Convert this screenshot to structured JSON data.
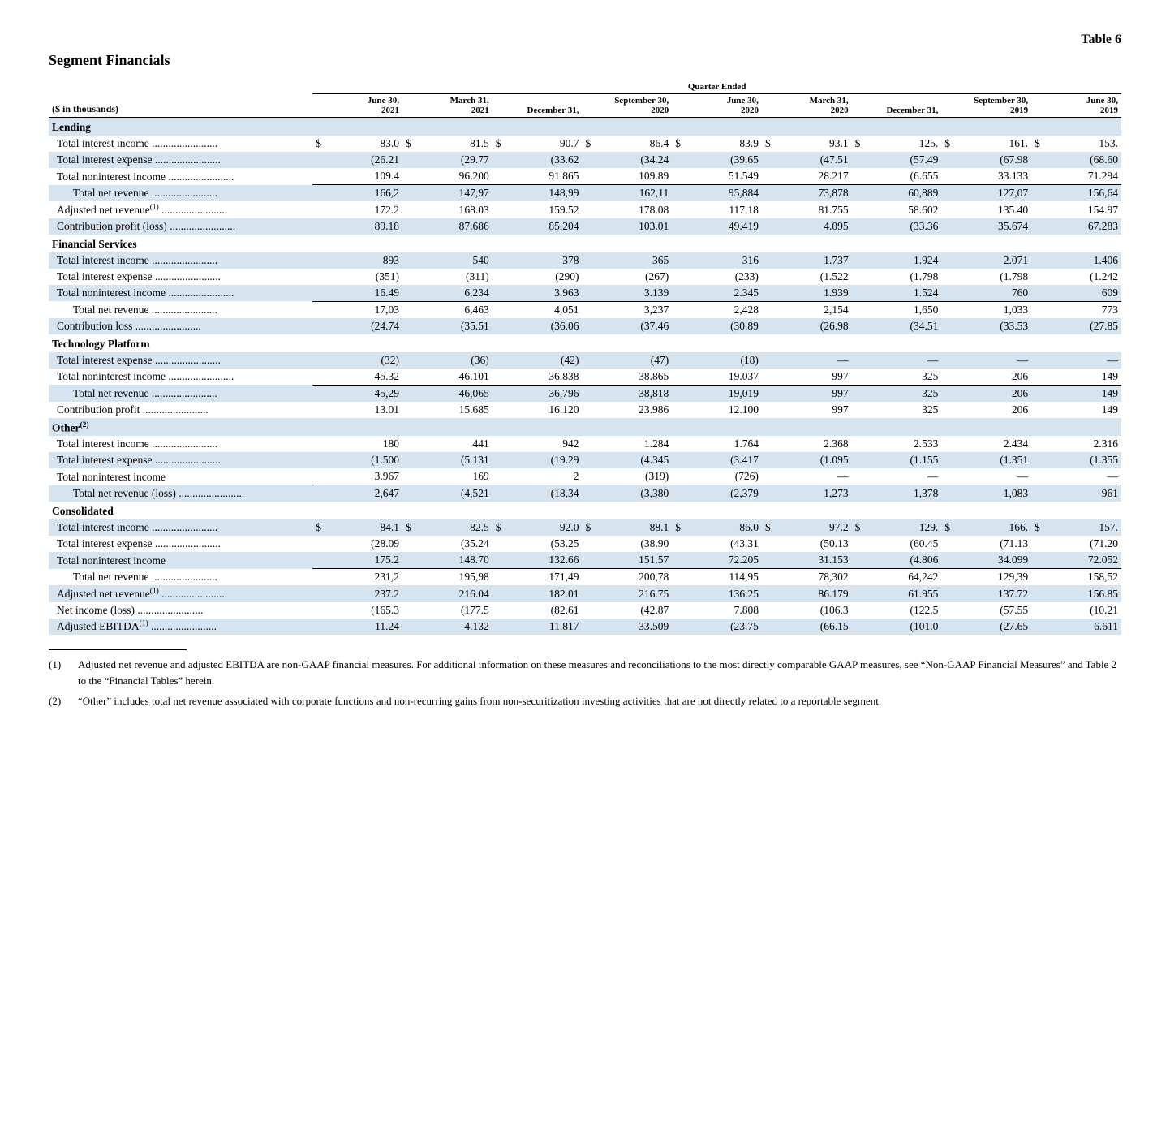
{
  "table_number": "Table 6",
  "title": "Segment Financials",
  "super_header": "Quarter Ended",
  "label_header": "($ in thousands)",
  "columns": [
    "June 30, 2021",
    "March 31, 2021",
    "December 31,",
    "September 30, 2020",
    "June 30, 2020",
    "March 31, 2020",
    "December 31,",
    "September 30, 2019",
    "June 30, 2019"
  ],
  "sections": [
    {
      "heading": "Lending",
      "heading_shade": true,
      "rows": [
        {
          "label": "Total interest income",
          "indent": 1,
          "dots": true,
          "shade": false,
          "currency": true,
          "cells": [
            "83.0",
            "81.5",
            "90.7",
            "86.4",
            "83.9",
            "93.1",
            "125.",
            "161.",
            "153."
          ]
        },
        {
          "label": "Total interest expense",
          "indent": 1,
          "dots": true,
          "shade": true,
          "cells": [
            "(26.21",
            "(29.77",
            "(33.62",
            "(34.24",
            "(39.65",
            "(47.51",
            "(57.49",
            "(67.98",
            "(68.60"
          ]
        },
        {
          "label": "Total noninterest income",
          "indent": 1,
          "dots": true,
          "shade": false,
          "underline": true,
          "cells": [
            "109.4",
            "96.200",
            "91.865",
            "109.89",
            "51.549",
            "28.217",
            "(6.655",
            "33.133",
            "71.294"
          ]
        },
        {
          "label": "Total net revenue",
          "indent": 2,
          "dots": true,
          "shade": true,
          "cells": [
            "166,2",
            "147,97",
            "148,99",
            "162,11",
            "95,884",
            "73,878",
            "60,889",
            "127,07",
            "156,64"
          ]
        },
        {
          "label": "Adjusted net revenue<sup>(1)</sup>",
          "indent": 1,
          "dots": true,
          "shade": false,
          "cells": [
            "172.2",
            "168.03",
            "159.52",
            "178.08",
            "117.18",
            "81.755",
            "58.602",
            "135.40",
            "154.97"
          ]
        },
        {
          "label": "Contribution profit (loss)",
          "indent": 1,
          "dots": true,
          "shade": true,
          "cells": [
            "89.18",
            "87.686",
            "85.204",
            "103.01",
            "49.419",
            "4.095",
            "(33.36",
            "35.674",
            "67.283"
          ]
        }
      ]
    },
    {
      "heading": "Financial Services",
      "heading_shade": false,
      "rows": [
        {
          "label": "Total interest income",
          "indent": 1,
          "dots": true,
          "shade": true,
          "cells": [
            "893",
            "540",
            "378",
            "365",
            "316",
            "1.737",
            "1.924",
            "2.071",
            "1.406"
          ]
        },
        {
          "label": "Total interest expense",
          "indent": 1,
          "dots": true,
          "shade": false,
          "cells": [
            "(351)",
            "(311)",
            "(290)",
            "(267)",
            "(233)",
            "(1.522",
            "(1.798",
            "(1.798",
            "(1.242"
          ]
        },
        {
          "label": "Total noninterest income",
          "indent": 1,
          "dots": true,
          "shade": true,
          "underline": true,
          "cells": [
            "16.49",
            "6.234",
            "3.963",
            "3.139",
            "2.345",
            "1.939",
            "1.524",
            "760",
            "609"
          ]
        },
        {
          "label": "Total net revenue",
          "indent": 2,
          "dots": true,
          "shade": false,
          "cells": [
            "17,03",
            "6,463",
            "4,051",
            "3,237",
            "2,428",
            "2,154",
            "1,650",
            "1,033",
            "773"
          ]
        },
        {
          "label": "Contribution loss",
          "indent": 1,
          "dots": true,
          "shade": true,
          "cells": [
            "(24.74",
            "(35.51",
            "(36.06",
            "(37.46",
            "(30.89",
            "(26.98",
            "(34.51",
            "(33.53",
            "(27.85"
          ]
        }
      ]
    },
    {
      "heading": "Technology Platform",
      "heading_shade": false,
      "rows": [
        {
          "label": "Total interest expense",
          "indent": 1,
          "dots": true,
          "shade": true,
          "cells": [
            "(32)",
            "(36)",
            "(42)",
            "(47)",
            "(18)",
            "—",
            "—",
            "—",
            "—"
          ]
        },
        {
          "label": "Total noninterest income",
          "indent": 1,
          "dots": true,
          "shade": false,
          "underline": true,
          "cells": [
            "45.32",
            "46.101",
            "36.838",
            "38.865",
            "19.037",
            "997",
            "325",
            "206",
            "149"
          ]
        },
        {
          "label": "Total net revenue",
          "indent": 2,
          "dots": true,
          "shade": true,
          "cells": [
            "45,29",
            "46,065",
            "36,796",
            "38,818",
            "19,019",
            "997",
            "325",
            "206",
            "149"
          ]
        },
        {
          "label": "Contribution profit",
          "indent": 1,
          "dots": true,
          "shade": false,
          "cells": [
            "13.01",
            "15.685",
            "16.120",
            "23.986",
            "12.100",
            "997",
            "325",
            "206",
            "149"
          ]
        }
      ]
    },
    {
      "heading": "Other<sup>(2)</sup>",
      "heading_shade": true,
      "rows": [
        {
          "label": "Total interest income",
          "indent": 1,
          "dots": true,
          "shade": false,
          "cells": [
            "180",
            "441",
            "942",
            "1.284",
            "1.764",
            "2.368",
            "2.533",
            "2.434",
            "2.316"
          ]
        },
        {
          "label": "Total interest expense",
          "indent": 1,
          "dots": true,
          "shade": true,
          "cells": [
            "(1.500",
            "(5.131",
            "(19.29",
            "(4.345",
            "(3.417",
            "(1.095",
            "(1.155",
            "(1.351",
            "(1.355"
          ]
        },
        {
          "label": "Total noninterest income",
          "indent": 1,
          "dots": false,
          "shade": false,
          "underline": true,
          "cells": [
            "3.967",
            "169",
            "2",
            "(319)",
            "(726)",
            "—",
            "—",
            "—",
            "—"
          ]
        },
        {
          "label": "Total net revenue (loss)",
          "indent": 2,
          "dots": true,
          "shade": true,
          "cells": [
            "2,647",
            "(4,521",
            "(18,34",
            "(3,380",
            "(2,379",
            "1,273",
            "1,378",
            "1,083",
            "961"
          ]
        }
      ]
    },
    {
      "heading": "Consolidated",
      "heading_shade": false,
      "rows": [
        {
          "label": "Total interest income",
          "indent": 1,
          "dots": true,
          "shade": true,
          "currency": true,
          "cells": [
            "84.1",
            "82.5",
            "92.0",
            "88.1",
            "86.0",
            "97.2",
            "129.",
            "166.",
            "157."
          ]
        },
        {
          "label": "Total interest expense",
          "indent": 1,
          "dots": true,
          "shade": false,
          "cells": [
            "(28.09",
            "(35.24",
            "(53.25",
            "(38.90",
            "(43.31",
            "(50.13",
            "(60.45",
            "(71.13",
            "(71.20"
          ]
        },
        {
          "label": "Total noninterest income",
          "indent": 1,
          "dots": false,
          "shade": true,
          "underline": true,
          "cells": [
            "175.2",
            "148.70",
            "132.66",
            "151.57",
            "72.205",
            "31.153",
            "(4.806",
            "34.099",
            "72.052"
          ]
        },
        {
          "label": "Total net revenue",
          "indent": 2,
          "dots": true,
          "shade": false,
          "cells": [
            "231,2",
            "195,98",
            "171,49",
            "200,78",
            "114,95",
            "78,302",
            "64,242",
            "129,39",
            "158,52"
          ]
        },
        {
          "label": "Adjusted net revenue<sup>(1)</sup>",
          "indent": 1,
          "dots": true,
          "shade": true,
          "cells": [
            "237.2",
            "216.04",
            "182.01",
            "216.75",
            "136.25",
            "86.179",
            "61.955",
            "137.72",
            "156.85"
          ]
        },
        {
          "label": "Net income (loss)",
          "indent": 1,
          "dots": true,
          "shade": false,
          "cells": [
            "(165.3",
            "(177.5",
            "(82.61",
            "(42.87",
            "7.808",
            "(106.3",
            "(122.5",
            "(57.55",
            "(10.21"
          ]
        },
        {
          "label": "Adjusted EBITDA<sup>(1)</sup>",
          "indent": 1,
          "dots": true,
          "shade": true,
          "cells": [
            "11.24",
            "4.132",
            "11.817",
            "33.509",
            "(23.75",
            "(66.15",
            "(101.0",
            "(27.65",
            "6.611"
          ]
        }
      ]
    }
  ],
  "footnotes": [
    {
      "num": "(1)",
      "text": "Adjusted net revenue and adjusted EBITDA are non-GAAP financial measures. For additional information on these measures and reconciliations to the most directly comparable GAAP measures, see “Non-GAAP Financial Measures” and Table 2 to the “Financial Tables” herein."
    },
    {
      "num": "(2)",
      "text": "“Other” includes total net revenue associated with corporate functions and non-recurring gains from non-securitization investing activities that are not directly related to a reportable segment."
    }
  ],
  "style": {
    "row_shade_color": "#d6e4ef",
    "font_family": "Times New Roman",
    "body_fontsize": 14,
    "header_fontsize": 11,
    "title_fontsize": 18
  }
}
